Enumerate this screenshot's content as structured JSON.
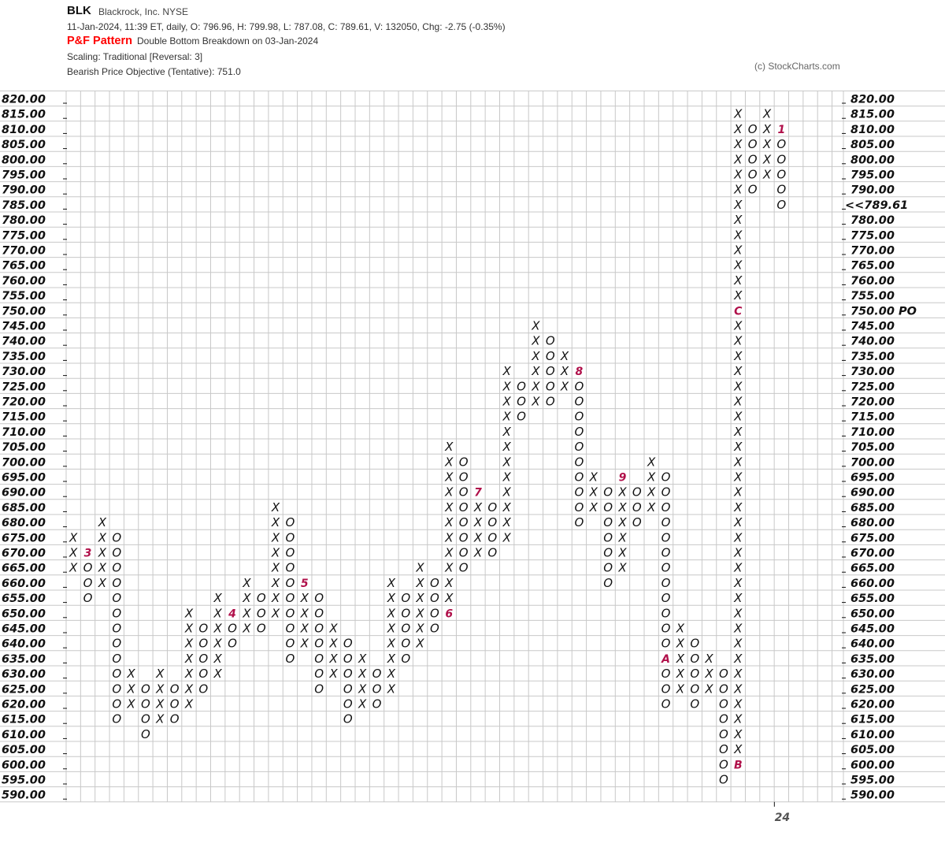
{
  "header": {
    "symbol": "BLK",
    "name": "Blackrock, Inc.  NYSE",
    "quote_line": "11-Jan-2024, 11:39 ET, daily, O: 796.96, H: 799.98, L: 787.08, C: 789.61, V: 132050, Chg: -2.75 (-0.35%)",
    "pattern_label": "P&F Pattern",
    "pattern_text": "Double Bottom Breakdown on 03-Jan-2024",
    "scaling": "Scaling: Traditional [Reversal: 3]",
    "objective": "Bearish Price Objective (Tentative): 751.0",
    "copyright": "(c) StockCharts.com"
  },
  "colors": {
    "grid": "#c8c8c8",
    "mark": "#111111",
    "month_label": "#b0104a",
    "current_price": "#b0104a",
    "objective": "#ff0000"
  },
  "chart_data": {
    "type": "point-and-figure",
    "box_size": 5,
    "reversal": 3,
    "ylim": [
      590,
      820
    ],
    "left_axis_labels": [
      "820.00",
      "815.00",
      "810.00",
      "805.00",
      "800.00",
      "795.00",
      "790.00",
      "785.00",
      "780.00",
      "775.00",
      "770.00",
      "765.00",
      "760.00",
      "755.00",
      "750.00",
      "745.00",
      "740.00",
      "735.00",
      "730.00",
      "725.00",
      "720.00",
      "715.00",
      "710.00",
      "705.00",
      "700.00",
      "695.00",
      "690.00",
      "685.00",
      "680.00",
      "675.00",
      "670.00",
      "665.00",
      "660.00",
      "655.00",
      "650.00",
      "645.00",
      "640.00",
      "635.00",
      "630.00",
      "625.00",
      "620.00",
      "615.00",
      "610.00",
      "605.00",
      "600.00",
      "595.00",
      "590.00"
    ],
    "right_axis_labels": [
      "820.00",
      "815.00",
      "810.00",
      "805.00",
      "800.00",
      "795.00",
      "790.00",
      "<<789.61",
      "780.00",
      "775.00",
      "770.00",
      "765.00",
      "760.00",
      "755.00",
      "750.00 PO",
      "745.00",
      "740.00",
      "735.00",
      "730.00",
      "725.00",
      "720.00",
      "715.00",
      "710.00",
      "705.00",
      "700.00",
      "695.00",
      "690.00",
      "685.00",
      "680.00",
      "675.00",
      "670.00",
      "665.00",
      "660.00",
      "655.00",
      "650.00",
      "645.00",
      "640.00",
      "635.00",
      "630.00",
      "625.00",
      "620.00",
      "615.00",
      "610.00",
      "605.00",
      "600.00",
      "595.00",
      "590.00"
    ],
    "current_price": 789.61,
    "current_price_row": 785,
    "price_objective": 750,
    "x_labels": [
      {
        "column": 49,
        "text": "24"
      }
    ],
    "columns": [
      {
        "type": "X",
        "low": 665,
        "high": 675
      },
      {
        "type": "O",
        "low": 655,
        "high": 670,
        "labels": {
          "670": "3"
        }
      },
      {
        "type": "X",
        "low": 660,
        "high": 680
      },
      {
        "type": "O",
        "low": 615,
        "high": 675
      },
      {
        "type": "X",
        "low": 620,
        "high": 630
      },
      {
        "type": "O",
        "low": 610,
        "high": 625
      },
      {
        "type": "X",
        "low": 615,
        "high": 630
      },
      {
        "type": "O",
        "low": 615,
        "high": 625
      },
      {
        "type": "X",
        "low": 620,
        "high": 650
      },
      {
        "type": "O",
        "low": 625,
        "high": 645
      },
      {
        "type": "X",
        "low": 630,
        "high": 655
      },
      {
        "type": "O",
        "low": 640,
        "high": 650,
        "labels": {
          "650": "4"
        }
      },
      {
        "type": "X",
        "low": 645,
        "high": 660
      },
      {
        "type": "O",
        "low": 645,
        "high": 655
      },
      {
        "type": "X",
        "low": 650,
        "high": 685
      },
      {
        "type": "O",
        "low": 635,
        "high": 680
      },
      {
        "type": "X",
        "low": 640,
        "high": 660,
        "labels": {
          "660": "5"
        }
      },
      {
        "type": "O",
        "low": 625,
        "high": 655
      },
      {
        "type": "X",
        "low": 630,
        "high": 645
      },
      {
        "type": "O",
        "low": 615,
        "high": 640
      },
      {
        "type": "X",
        "low": 620,
        "high": 635
      },
      {
        "type": "O",
        "low": 620,
        "high": 630
      },
      {
        "type": "X",
        "low": 625,
        "high": 660
      },
      {
        "type": "O",
        "low": 635,
        "high": 655
      },
      {
        "type": "X",
        "low": 640,
        "high": 665
      },
      {
        "type": "O",
        "low": 645,
        "high": 660
      },
      {
        "type": "X",
        "low": 650,
        "high": 705,
        "labels": {
          "650": "6"
        }
      },
      {
        "type": "O",
        "low": 665,
        "high": 700
      },
      {
        "type": "X",
        "low": 670,
        "high": 690,
        "labels": {
          "690": "7"
        }
      },
      {
        "type": "O",
        "low": 670,
        "high": 685
      },
      {
        "type": "X",
        "low": 675,
        "high": 730
      },
      {
        "type": "O",
        "low": 715,
        "high": 725
      },
      {
        "type": "X",
        "low": 720,
        "high": 745
      },
      {
        "type": "O",
        "low": 720,
        "high": 740
      },
      {
        "type": "X",
        "low": 725,
        "high": 735
      },
      {
        "type": "O",
        "low": 680,
        "high": 730,
        "labels": {
          "730": "8"
        }
      },
      {
        "type": "X",
        "low": 685,
        "high": 695
      },
      {
        "type": "O",
        "low": 660,
        "high": 690
      },
      {
        "type": "X",
        "low": 665,
        "high": 695,
        "labels": {
          "695": "9"
        }
      },
      {
        "type": "O",
        "low": 680,
        "high": 690
      },
      {
        "type": "X",
        "low": 685,
        "high": 700
      },
      {
        "type": "O",
        "low": 620,
        "high": 695,
        "labels": {
          "635": "A"
        }
      },
      {
        "type": "X",
        "low": 625,
        "high": 645
      },
      {
        "type": "O",
        "low": 620,
        "high": 640
      },
      {
        "type": "X",
        "low": 625,
        "high": 635
      },
      {
        "type": "O",
        "low": 595,
        "high": 630
      },
      {
        "type": "X",
        "low": 600,
        "high": 815,
        "labels": {
          "600": "B",
          "750": "C"
        }
      },
      {
        "type": "O",
        "low": 790,
        "high": 810
      },
      {
        "type": "X",
        "low": 795,
        "high": 815
      },
      {
        "type": "O",
        "low": 785,
        "high": 810,
        "labels": {
          "810": "1"
        }
      }
    ]
  }
}
